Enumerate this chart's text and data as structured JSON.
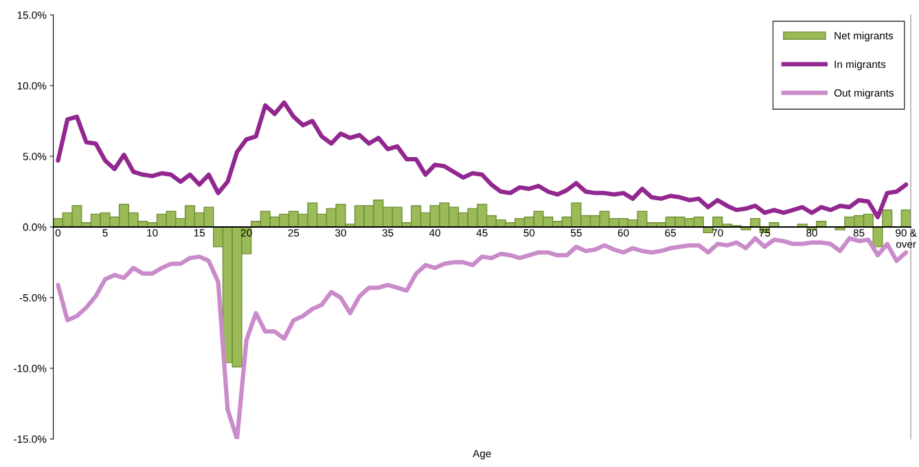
{
  "chart_data": {
    "type": "bar",
    "xlabel": "Age",
    "categories": [
      "0",
      null,
      null,
      null,
      null,
      "5",
      null,
      null,
      null,
      null,
      "10",
      null,
      null,
      null,
      null,
      "15",
      null,
      null,
      null,
      null,
      "20",
      null,
      null,
      null,
      null,
      "25",
      null,
      null,
      null,
      null,
      "30",
      null,
      null,
      null,
      null,
      "35",
      null,
      null,
      null,
      null,
      "40",
      null,
      null,
      null,
      null,
      "45",
      null,
      null,
      null,
      null,
      "50",
      null,
      null,
      null,
      null,
      "55",
      null,
      null,
      null,
      null,
      "60",
      null,
      null,
      null,
      null,
      "65",
      null,
      null,
      null,
      null,
      "70",
      null,
      null,
      null,
      null,
      "75",
      null,
      null,
      null,
      null,
      "80",
      null,
      null,
      null,
      null,
      "85",
      null,
      null,
      null,
      null,
      "90 &\nover"
    ],
    "series": [
      {
        "name": "Net migrants",
        "color": "#9bbb59",
        "values": [
          0.6,
          1.0,
          1.5,
          0.3,
          0.9,
          1.0,
          0.7,
          1.6,
          1.0,
          0.4,
          0.3,
          0.9,
          1.1,
          0.6,
          1.5,
          1.0,
          1.4,
          -1.4,
          -9.6,
          -9.9,
          -1.9,
          0.4,
          1.1,
          0.7,
          0.9,
          1.1,
          0.9,
          1.7,
          0.9,
          1.3,
          1.6,
          0.2,
          1.5,
          1.5,
          1.9,
          1.4,
          1.4,
          0.3,
          1.5,
          1.0,
          1.5,
          1.7,
          1.4,
          1.0,
          1.3,
          1.6,
          0.8,
          0.5,
          0.3,
          0.6,
          0.7,
          1.1,
          0.7,
          0.4,
          0.7,
          1.7,
          0.8,
          0.8,
          1.1,
          0.6,
          0.6,
          0.5,
          1.1,
          0.3,
          0.3,
          0.7,
          0.7,
          0.6,
          0.7,
          -0.4,
          0.7,
          0.2,
          0.1,
          -0.2,
          0.6,
          -0.4,
          0.3,
          0,
          0,
          0.2,
          -0.2,
          0.4,
          0,
          -0.2,
          0.7,
          0.8,
          0.9,
          -1.4,
          1.2,
          0,
          1.2
        ]
      },
      {
        "name": "In migrants",
        "type": "line",
        "color": "#91278f",
        "values": [
          4.7,
          7.6,
          7.8,
          6.0,
          5.9,
          4.7,
          4.1,
          5.1,
          3.9,
          3.7,
          3.6,
          3.8,
          3.7,
          3.2,
          3.7,
          3.0,
          3.7,
          2.4,
          3.2,
          5.3,
          6.2,
          6.4,
          8.6,
          8.0,
          8.8,
          7.8,
          7.2,
          7.5,
          6.4,
          5.9,
          6.6,
          6.3,
          6.5,
          5.9,
          6.3,
          5.5,
          5.7,
          4.8,
          4.8,
          3.7,
          4.4,
          4.3,
          3.9,
          3.5,
          3.8,
          3.7,
          3.0,
          2.5,
          2.4,
          2.8,
          2.7,
          2.9,
          2.5,
          2.3,
          2.6,
          3.1,
          2.5,
          2.4,
          2.4,
          2.3,
          2.4,
          2.0,
          2.7,
          2.1,
          2.0,
          2.2,
          2.1,
          1.9,
          2.0,
          1.4,
          1.9,
          1.5,
          1.2,
          1.3,
          1.5,
          1.0,
          1.2,
          1.0,
          1.2,
          1.4,
          1.0,
          1.4,
          1.2,
          1.5,
          1.4,
          1.9,
          1.8,
          0.7,
          2.4,
          2.5,
          3.0
        ]
      },
      {
        "name": "Out migrants",
        "type": "line",
        "color": "#c98bc9",
        "values": [
          -4.1,
          -6.6,
          -6.3,
          -5.7,
          -4.9,
          -3.7,
          -3.4,
          -3.6,
          -2.9,
          -3.3,
          -3.3,
          -2.9,
          -2.6,
          -2.6,
          -2.2,
          -2.1,
          -2.4,
          -3.9,
          -12.9,
          -15.0,
          -8.0,
          -6.1,
          -7.4,
          -7.4,
          -7.9,
          -6.6,
          -6.3,
          -5.8,
          -5.5,
          -4.6,
          -5.0,
          -6.1,
          -4.9,
          -4.3,
          -4.3,
          -4.1,
          -4.3,
          -4.5,
          -3.3,
          -2.7,
          -2.9,
          -2.6,
          -2.5,
          -2.5,
          -2.7,
          -2.1,
          -2.2,
          -1.9,
          -2.0,
          -2.2,
          -2.0,
          -1.8,
          -1.8,
          -2.0,
          -2.0,
          -1.4,
          -1.7,
          -1.6,
          -1.3,
          -1.6,
          -1.8,
          -1.5,
          -1.7,
          -1.8,
          -1.7,
          -1.5,
          -1.4,
          -1.3,
          -1.3,
          -1.8,
          -1.2,
          -1.3,
          -1.1,
          -1.5,
          -0.8,
          -1.4,
          -0.9,
          -1.0,
          -1.2,
          -1.2,
          -1.1,
          -1.1,
          -1.2,
          -1.7,
          -0.8,
          -1.0,
          -0.9,
          -2.0,
          -1.2,
          -2.4,
          -1.8
        ]
      }
    ],
    "ylim": [
      -15,
      15
    ],
    "yticks": [
      {
        "value": -15,
        "label": "-15.0%"
      },
      {
        "value": -10,
        "label": "-10.0%"
      },
      {
        "value": -5,
        "label": "-5.0%"
      },
      {
        "value": 0,
        "label": "0.0%"
      },
      {
        "value": 5,
        "label": "5.0%"
      },
      {
        "value": 10,
        "label": "10.0%"
      },
      {
        "value": 15,
        "label": "15.0%"
      }
    ],
    "grid": false,
    "legend": "top right",
    "marker": "none",
    "line_style": "solid"
  }
}
